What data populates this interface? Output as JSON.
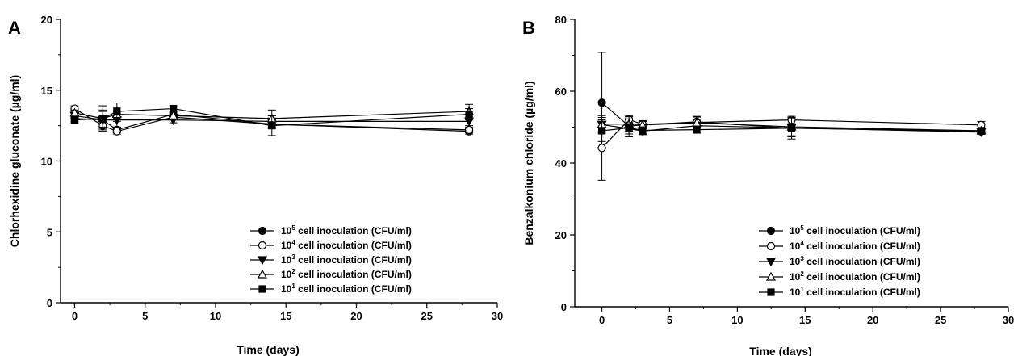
{
  "legend_entries": [
    {
      "base": "10",
      "exp": "5",
      "rest": " cell inoculation (CFU/ml)",
      "marker": "circle",
      "filled": true
    },
    {
      "base": "10",
      "exp": "4",
      "rest": " cell inoculation (CFU/ml)",
      "marker": "circle",
      "filled": false
    },
    {
      "base": "10",
      "exp": "3",
      "rest": " cell inoculation (CFU/ml)",
      "marker": "triangle-down",
      "filled": true
    },
    {
      "base": "10",
      "exp": "2",
      "rest": " cell inoculation (CFU/ml)",
      "marker": "triangle-up",
      "filled": false
    },
    {
      "base": "10",
      "exp": "1",
      "rest": " cell inoculation (CFU/ml)",
      "marker": "square",
      "filled": true
    }
  ],
  "chart_data": [
    {
      "panel": "A",
      "type": "line",
      "xlabel": "Time (days)",
      "ylabel": "Chlorhexidine gluconate (µg/ml)",
      "xlim": [
        -1,
        30
      ],
      "ylim": [
        0,
        20
      ],
      "xticks": [
        0,
        5,
        10,
        15,
        20,
        25,
        30
      ],
      "yticks": [
        0,
        5,
        10,
        15,
        20
      ],
      "x": [
        0,
        2,
        3,
        7,
        14,
        28
      ],
      "legend_position": "bottom-right",
      "grid": false,
      "series": [
        {
          "values": [
            13.0,
            12.9,
            12.2,
            13.3,
            12.6,
            12.1
          ],
          "errors": [
            0.2,
            0.3,
            0.2,
            0.2,
            0.3,
            0.2
          ]
        },
        {
          "values": [
            13.7,
            12.5,
            12.1,
            13.1,
            12.6,
            12.2
          ],
          "errors": [
            0.2,
            0.3,
            0.2,
            0.2,
            0.3,
            0.2
          ]
        },
        {
          "values": [
            13.2,
            12.9,
            12.9,
            12.9,
            12.8,
            12.8
          ],
          "errors": [
            0.2,
            0.6,
            0.5,
            0.2,
            0.4,
            0.3
          ]
        },
        {
          "values": [
            13.4,
            13.0,
            13.3,
            13.2,
            13.0,
            13.5
          ],
          "errors": [
            0.2,
            0.6,
            0.5,
            0.2,
            0.6,
            0.5
          ]
        },
        {
          "values": [
            12.9,
            13.0,
            13.5,
            13.7,
            12.5,
            13.3
          ],
          "errors": [
            0.2,
            0.9,
            0.6,
            0.2,
            0.7,
            0.4
          ]
        }
      ]
    },
    {
      "panel": "B",
      "type": "line",
      "xlabel": "Time (days)",
      "ylabel": "Benzalkonium chloride (µg/ml)",
      "xlim": [
        -2,
        30
      ],
      "ylim": [
        0,
        80
      ],
      "xticks": [
        0,
        5,
        10,
        15,
        20,
        25,
        30
      ],
      "yticks": [
        0,
        20,
        40,
        60,
        80
      ],
      "x": [
        0,
        2,
        3,
        7,
        14,
        28
      ],
      "legend_position": "bottom-right",
      "grid": false,
      "series": [
        {
          "values": [
            56.8,
            50.3,
            50.6,
            51.5,
            49.7,
            48.8
          ],
          "errors": [
            14.0,
            1.0,
            1.0,
            1.5,
            1.0,
            0.6
          ]
        },
        {
          "values": [
            44.2,
            52.1,
            50.8,
            51.3,
            52.0,
            50.6
          ],
          "errors": [
            9.0,
            1.0,
            1.0,
            1.5,
            1.0,
            1.0
          ]
        },
        {
          "values": [
            50.7,
            49.6,
            48.9,
            50.4,
            49.8,
            48.6
          ],
          "errors": [
            2.0,
            1.5,
            1.0,
            1.0,
            2.5,
            0.6
          ]
        },
        {
          "values": [
            50.8,
            50.9,
            50.6,
            51.2,
            50.1,
            49.0
          ],
          "errors": [
            2.5,
            2.0,
            1.0,
            1.0,
            2.5,
            0.6
          ]
        },
        {
          "values": [
            49.0,
            49.8,
            49.1,
            49.3,
            49.7,
            49.0
          ],
          "errors": [
            3.0,
            2.5,
            1.0,
            1.0,
            3.0,
            0.6
          ]
        }
      ]
    }
  ]
}
